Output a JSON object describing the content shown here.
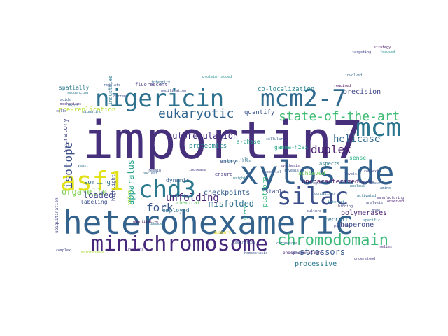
{
  "words": [
    {
      "text": "importin7",
      "color": "#46307c"
    },
    {
      "text": "heterohexameric",
      "color": "#33628d"
    },
    {
      "text": "xyloside",
      "color": "#33618d"
    },
    {
      "text": "nigericin",
      "color": "#2c718e"
    },
    {
      "text": "mcm2-7",
      "color": "#306a8e"
    },
    {
      "text": "minichromosome",
      "color": "#46277a"
    },
    {
      "text": "chd3",
      "color": "#2a788e"
    },
    {
      "text": "asf1",
      "color": "#e0e118"
    },
    {
      "text": "silac",
      "color": "#3c508b"
    },
    {
      "text": "mcm",
      "color": "#2b748e"
    },
    {
      "text": "chromodomain",
      "color": "#3aba76"
    },
    {
      "text": "state-of-the-art",
      "color": "#3fbc73"
    },
    {
      "text": "eukaryotic",
      "color": "#32658e"
    },
    {
      "text": "isotope",
      "color": "#3c4f8a"
    },
    {
      "text": "duplex",
      "color": "#481b6d"
    },
    {
      "text": "fork",
      "color": "#39568c"
    },
    {
      "text": "helicase",
      "color": "#30688e"
    },
    {
      "text": "unfolding",
      "color": "#482374"
    },
    {
      "text": "autoregulation",
      "color": "#472f7d"
    },
    {
      "text": "organelle",
      "color": "#7ad151"
    },
    {
      "text": "apparatus",
      "color": "#1fa287"
    },
    {
      "text": "loaded",
      "color": "#404688"
    },
    {
      "text": "misfolded",
      "color": "#2d708e"
    },
    {
      "text": "stressors",
      "color": "#37598c"
    },
    {
      "text": "checkpoints",
      "color": "#365d8d"
    },
    {
      "text": "uncharacterized",
      "color": "#471164"
    },
    {
      "text": "processive",
      "color": "#2a788e"
    },
    {
      "text": "chaperone",
      "color": "#3e4a89"
    },
    {
      "text": "polymerases",
      "color": "#481f70"
    },
    {
      "text": "precision",
      "color": "#404588"
    },
    {
      "text": "quantify",
      "color": "#39558c"
    },
    {
      "text": "co-localization",
      "color": "#26828e"
    },
    {
      "text": "proteomics",
      "color": "#24868e"
    },
    {
      "text": "sorting",
      "color": "#2e6e8e"
    },
    {
      "text": "secretory",
      "color": "#3f4788"
    },
    {
      "text": "pre-replication",
      "color": "#b5de2b"
    },
    {
      "text": "spatially",
      "color": "#2a788e"
    },
    {
      "text": "fluorescent",
      "color": "#443983"
    },
    {
      "text": "gamma-h2ax",
      "color": "#22a884"
    },
    {
      "text": "s-phase",
      "color": "#1fa088"
    },
    {
      "text": "entry",
      "color": "#3a538b"
    },
    {
      "text": "achieved",
      "color": "#6ccd5a"
    },
    {
      "text": "sense",
      "color": "#29af7f"
    },
    {
      "text": "aspects",
      "color": "#287d8e"
    },
    {
      "text": "recruit",
      "color": "#2c728e"
    },
    {
      "text": "stable",
      "color": "#3e4c8a"
    },
    {
      "text": "labeling",
      "color": "#3b518b"
    },
    {
      "text": "employed",
      "color": "#2d708e"
    },
    {
      "text": "dynamic",
      "color": "#345f8d"
    },
    {
      "text": "ensure",
      "color": "#443b84"
    },
    {
      "text": "platform",
      "color": "#35b779"
    },
    {
      "text": "green",
      "color": "#2ab07f"
    },
    {
      "text": "chemical",
      "color": "#5ec962"
    },
    {
      "text": "highlight",
      "color": "#3e4989"
    },
    {
      "text": "vitro",
      "color": "#a5db36"
    },
    {
      "text": "ubiquitination",
      "color": "#414487"
    },
    {
      "text": "industries",
      "color": "#2a778e"
    },
    {
      "text": "regulate",
      "color": "#3b528b"
    },
    {
      "text": "signaling",
      "color": "#2f6c8e"
    },
    {
      "text": "modification",
      "color": "#3f4889"
    },
    {
      "text": "integrity",
      "color": "#2e6f8e"
    },
    {
      "text": "protein-tagged",
      "color": "#21918c"
    },
    {
      "text": "summary",
      "color": "#ecd920"
    },
    {
      "text": "increase",
      "color": "#46327e"
    },
    {
      "text": "demonstrates",
      "color": "#2c738e"
    },
    {
      "text": "reveals",
      "color": "#365c8d"
    },
    {
      "text": "phosphorylation",
      "color": "#482878"
    },
    {
      "text": "combination",
      "color": "#3d4d8a"
    },
    {
      "text": "chromosome",
      "color": "#31678e"
    },
    {
      "text": "damage",
      "color": "#2b758e"
    },
    {
      "text": "quantitative",
      "color": "#450b5e"
    },
    {
      "text": "complex",
      "color": "#3f4788"
    },
    {
      "text": "maintenance",
      "color": "#a8db34"
    },
    {
      "text": "functions",
      "color": "#46307e"
    },
    {
      "text": "homeostasis",
      "color": "#3b528b"
    },
    {
      "text": "specific",
      "color": "#2a778e"
    },
    {
      "text": "profile",
      "color": "#433e85"
    },
    {
      "text": "relies",
      "color": "#482173"
    },
    {
      "text": "culture",
      "color": "#3c4f8a"
    },
    {
      "text": "activated",
      "color": "#2e6d8e"
    },
    {
      "text": "strategy",
      "color": "#481769"
    },
    {
      "text": "targeting",
      "color": "#404588"
    },
    {
      "text": "involved",
      "color": "#30698e"
    },
    {
      "text": "required",
      "color": "#440154"
    },
    {
      "text": "focused",
      "color": "#21918c"
    },
    {
      "text": "understood",
      "color": "#443983"
    },
    {
      "text": "structural",
      "color": "#3b528b"
    },
    {
      "text": "sequencing",
      "color": "#2a788e"
    },
    {
      "text": "acids",
      "color": "#375a8c"
    },
    {
      "text": "mechanisms",
      "color": "#482475"
    },
    {
      "text": "major",
      "color": "#306a8e"
    },
    {
      "text": "cells",
      "color": "#414387"
    },
    {
      "text": "yeast",
      "color": "#2d708e"
    },
    {
      "text": "current",
      "color": "#3e4a89"
    },
    {
      "text": "remain",
      "color": "#3a548c"
    },
    {
      "text": "nuclear",
      "color": "#31678e"
    },
    {
      "text": "ability",
      "color": "#39568c"
    },
    {
      "text": "role",
      "color": "#2c728e"
    },
    {
      "text": "synthesis",
      "color": "#46337f"
    },
    {
      "text": "essential",
      "color": "#3b518b"
    },
    {
      "text": "insights",
      "color": "#2a768e"
    },
    {
      "text": "levels",
      "color": "#3d4e8a"
    },
    {
      "text": "response",
      "color": "#472c7a"
    },
    {
      "text": "mass",
      "color": "#365d8d"
    },
    {
      "text": "amino",
      "color": "#2f6b8e"
    },
    {
      "text": "region",
      "color": "#404688"
    },
    {
      "text": "cellular",
      "color": "#34608d"
    },
    {
      "text": "conditions",
      "color": "#30698e"
    },
    {
      "text": "binding",
      "color": "#433d84"
    },
    {
      "text": "analysis",
      "color": "#3e4989"
    },
    {
      "text": "model",
      "color": "#3b528b"
    },
    {
      "text": "interact",
      "color": "#2a788e"
    },
    {
      "text": "context",
      "color": "#3f4788"
    },
    {
      "text": "nucleus",
      "color": "#2c728e"
    },
    {
      "text": "observed",
      "color": "#481d6f"
    },
    {
      "text": "manufacturing",
      "color": "#472d7b"
    }
  ]
}
